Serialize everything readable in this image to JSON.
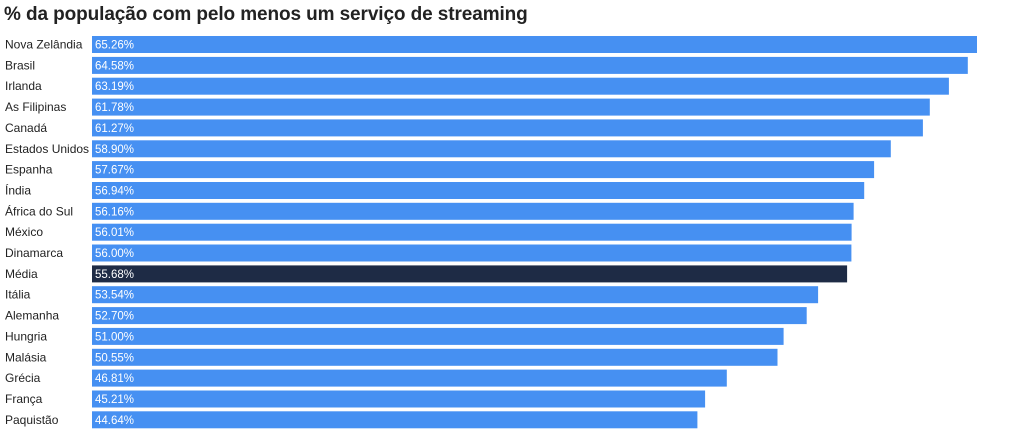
{
  "title": "% da população com pelo menos um serviço de streaming",
  "colors": {
    "bar": "#4690f2",
    "highlight": "#1e2b45",
    "label": "#222222",
    "value_text": "#ffffff"
  },
  "chart_data": {
    "type": "bar",
    "orientation": "horizontal",
    "title": "% da população com pelo menos um serviço de streaming",
    "xlabel": "",
    "ylabel": "",
    "unit": "%",
    "grid": false,
    "highlight": "Média",
    "categories": [
      "Nova Zelândia",
      "Brasil",
      "Irlanda",
      "As Filipinas",
      "Canadá",
      "Estados Unidos",
      "Espanha",
      "Índia",
      "África do Sul",
      "México",
      "Dinamarca",
      "Média",
      "Itália",
      "Alemanha",
      "Hungria",
      "Malásia",
      "Grécia",
      "França",
      "Paquistão"
    ],
    "values": [
      65.26,
      64.58,
      63.19,
      61.78,
      61.27,
      58.9,
      57.67,
      56.94,
      56.16,
      56.01,
      56.0,
      55.68,
      53.54,
      52.7,
      51.0,
      50.55,
      46.81,
      45.21,
      44.64
    ],
    "value_labels": [
      "65.26%",
      "64.58%",
      "63.19%",
      "61.78%",
      "61.27%",
      "58.90%",
      "57.67%",
      "56.94%",
      "56.16%",
      "56.01%",
      "56.00%",
      "55.68%",
      "53.54%",
      "52.70%",
      "51.00%",
      "50.55%",
      "46.81%",
      "45.21%",
      "44.64%"
    ]
  }
}
